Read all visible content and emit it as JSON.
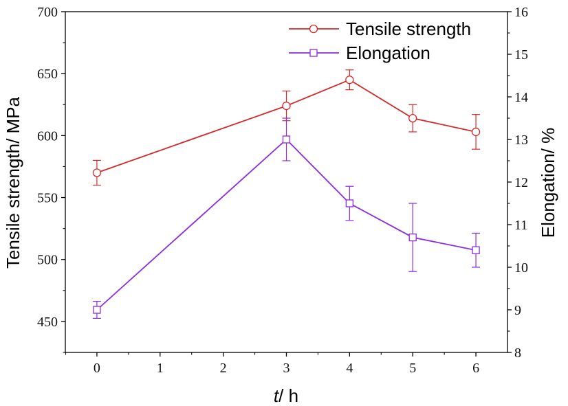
{
  "chart_data": {
    "type": "line",
    "x": [
      0,
      3,
      4,
      5,
      6
    ],
    "xlabel": {
      "var": "t",
      "unit": "/ h"
    },
    "xticks": [
      "0",
      "1",
      "2",
      "3",
      "4",
      "5",
      "6"
    ],
    "xlim": [
      -0.5,
      6.5
    ],
    "ylabel_left": "Tensile strength/ MPa",
    "ylabel_right": "Elongation/ %",
    "ylim_left": [
      425,
      700
    ],
    "ylim_right": [
      8,
      16
    ],
    "yticks_left": [
      "450",
      "500",
      "550",
      "600",
      "650",
      "700"
    ],
    "yticks_right": [
      "8",
      "9",
      "10",
      "11",
      "12",
      "13",
      "14",
      "15",
      "16"
    ],
    "legend_position": "top-right",
    "grid": false,
    "series": [
      {
        "name": "Tensile strength",
        "axis": "left",
        "marker": "circle",
        "color": "#d62728",
        "values": [
          570,
          624,
          645,
          614,
          603
        ],
        "error": [
          10,
          12,
          8,
          11,
          14
        ]
      },
      {
        "name": "Elongation",
        "axis": "right",
        "marker": "square",
        "color": "#8a2be2",
        "values": [
          9.0,
          13.0,
          11.5,
          10.7,
          10.4
        ],
        "error": [
          0.2,
          0.5,
          0.4,
          0.8,
          0.4
        ]
      }
    ]
  }
}
